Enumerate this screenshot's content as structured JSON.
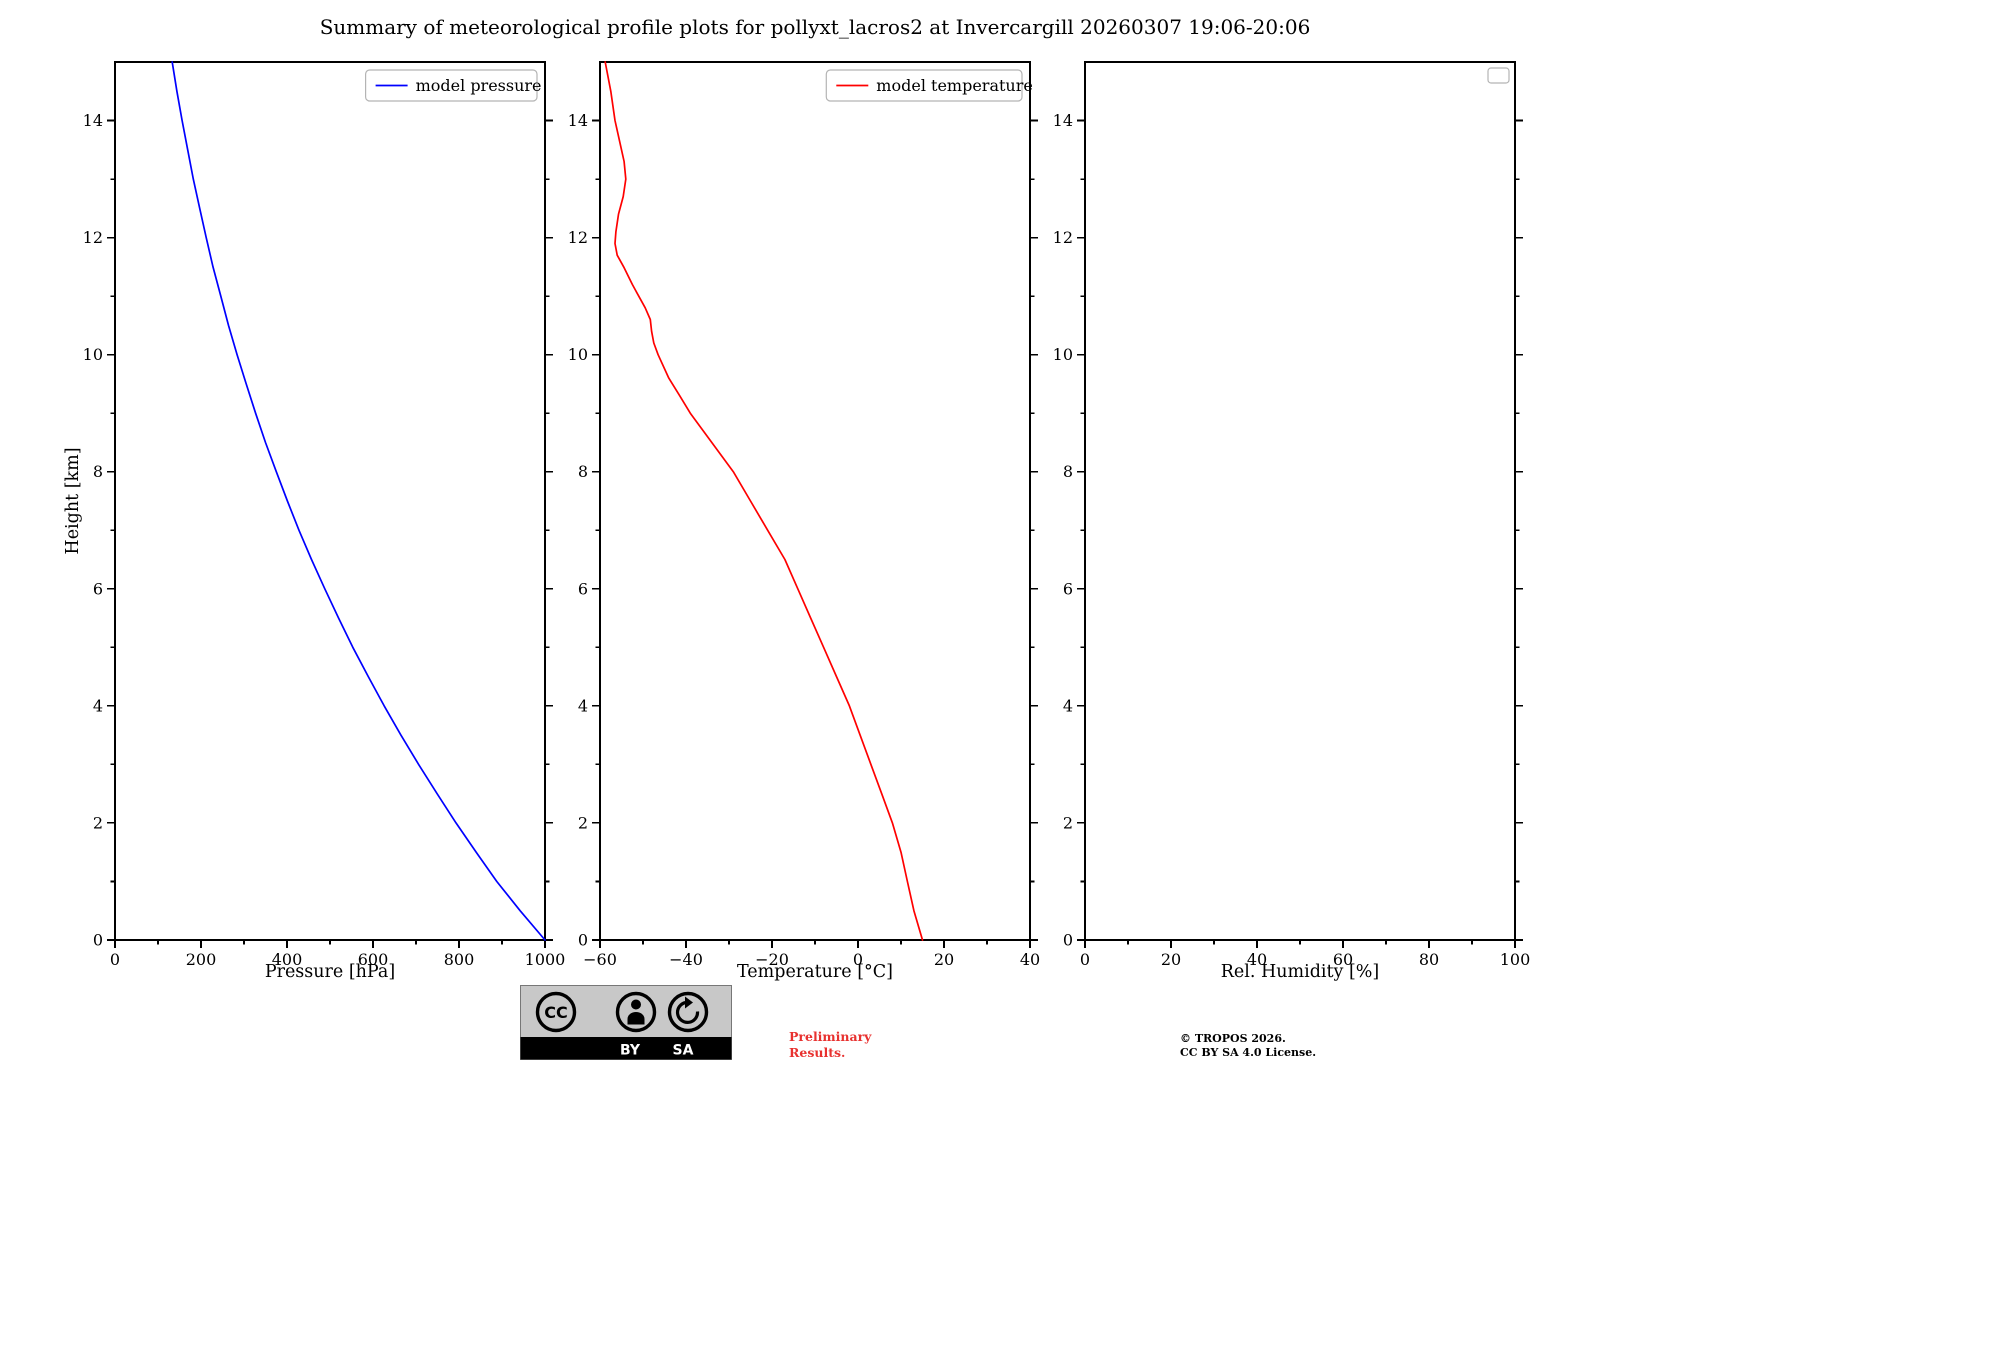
{
  "title": "Summary of meteorological profile plots for pollyxt_lacros2 at Invercargill 20260307 19:06-20:06",
  "ylabel": "Height [km]",
  "footer": {
    "preliminary_line1": "Preliminary",
    "preliminary_line2": "Results.",
    "preliminary_color": "#e8312f",
    "copyright_line1": "© TROPOS 2026.",
    "copyright_line2": "CC BY SA 4.0 License.",
    "cc_badge": {
      "cc": "CC",
      "by": "BY",
      "sa": "SA"
    }
  },
  "chart_data": {
    "type": "line",
    "title": "Summary of meteorological profile plots for pollyxt_lacros2 at Invercargill 20260307 19:06-20:06",
    "ylabel": "Height [km]",
    "ylim": [
      0,
      15
    ],
    "yticks": [
      0,
      2,
      4,
      6,
      8,
      10,
      12,
      14
    ],
    "grid": false,
    "legend_position": "upper right",
    "plots": [
      {
        "xlabel": "Pressure [hPa]",
        "xlim": [
          0,
          1000
        ],
        "xticks": [
          0,
          200,
          400,
          600,
          800,
          1000
        ],
        "legend": [
          {
            "label": "model pressure",
            "color": "#0000ff"
          }
        ],
        "series": [
          {
            "name": "model pressure",
            "color": "#0000ff",
            "heights_km": [
              0,
              0.5,
              1,
              1.5,
              2,
              2.5,
              3,
              3.5,
              4,
              4.5,
              5,
              5.5,
              6,
              6.5,
              7,
              7.5,
              8,
              8.5,
              9,
              9.5,
              10,
              10.5,
              11,
              11.5,
              12,
              12.5,
              13,
              13.5,
              14,
              14.5,
              15
            ],
            "values": [
              1000,
              942,
              888,
              840,
              793,
              749,
              706,
              665,
              626,
              589,
              553,
              520,
              488,
              457,
              428,
              401,
              375,
              350,
              327,
              305,
              284,
              264,
              246,
              228,
              212,
              197,
              182,
              169,
              156,
              144,
              133
            ]
          }
        ]
      },
      {
        "xlabel": "Temperature [°C]",
        "xlim": [
          -60,
          40
        ],
        "xticks": [
          -60,
          -40,
          -20,
          0,
          20,
          40
        ],
        "legend": [
          {
            "label": "model temperature",
            "color": "#ff0000"
          }
        ],
        "series": [
          {
            "name": "model temperature",
            "color": "#ff0000",
            "heights_km": [
              0,
              0.5,
              1,
              1.5,
              2,
              2.5,
              3,
              3.5,
              4,
              4.5,
              5,
              5.5,
              6,
              6.5,
              7,
              7.5,
              8,
              8.5,
              9,
              9.3,
              9.6,
              10,
              10.2,
              10.4,
              10.6,
              10.8,
              11,
              11.2,
              11.5,
              11.7,
              11.9,
              12.1,
              12.4,
              12.7,
              13,
              13.3,
              13.6,
              14,
              14.5,
              15
            ],
            "values": [
              15,
              13,
              11.5,
              10,
              8,
              5.5,
              3,
              0.5,
              -2,
              -5,
              -8,
              -11,
              -14,
              -17,
              -21,
              -25,
              -29,
              -34,
              -39,
              -41.5,
              -44,
              -46.5,
              -47.5,
              -48,
              -48.3,
              -49.5,
              -51,
              -52.5,
              -54.5,
              -56,
              -56.5,
              -56.3,
              -55.7,
              -54.6,
              -54,
              -54.4,
              -55.3,
              -56.5,
              -57.5,
              -58.8
            ]
          }
        ]
      },
      {
        "xlabel": "Rel. Humidity [%]",
        "xlim": [
          0,
          100
        ],
        "xticks": [
          0,
          20,
          40,
          60,
          80,
          100
        ],
        "legend": [],
        "series": []
      }
    ]
  }
}
